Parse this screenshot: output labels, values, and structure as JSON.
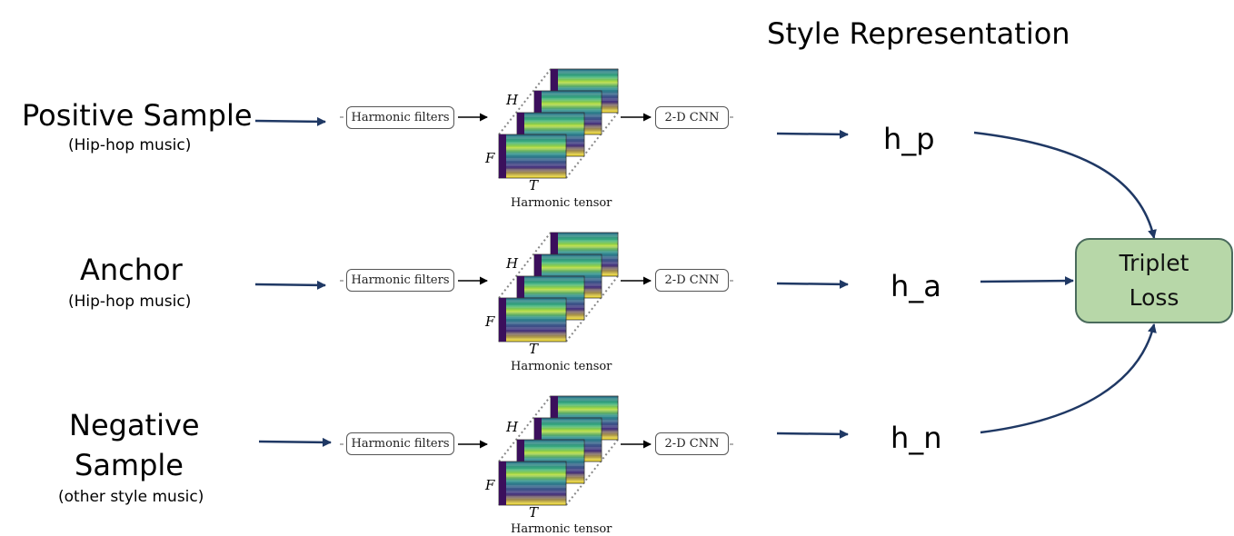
{
  "header": "Style Representation",
  "rows": [
    {
      "id": "positive",
      "title_lines": [
        "Positive Sample"
      ],
      "subtitle": "(Hip-hop music)",
      "filters": "Harmonic filters",
      "cnn": "2-D CNN",
      "axis_h": "H",
      "axis_f": "F",
      "axis_t": "T",
      "tensor_label": "Harmonic tensor",
      "repr": "h_p"
    },
    {
      "id": "anchor",
      "title_lines": [
        "Anchor"
      ],
      "subtitle": "(Hip-hop music)",
      "filters": "Harmonic filters",
      "cnn": "2-D CNN",
      "axis_h": "H",
      "axis_f": "F",
      "axis_t": "T",
      "tensor_label": "Harmonic tensor",
      "repr": "h_a"
    },
    {
      "id": "negative",
      "title_lines": [
        "Negative",
        "Sample"
      ],
      "subtitle": "(other style music)",
      "filters": "Harmonic filters",
      "cnn": "2-D CNN",
      "axis_h": "H",
      "axis_f": "F",
      "axis_t": "T",
      "tensor_label": "Harmonic tensor",
      "repr": "h_n"
    }
  ],
  "loss": {
    "line1": "Triplet",
    "line2": "Loss"
  },
  "colors": {
    "arrow": "#1f3864",
    "black_arrow": "#000000",
    "loss_fill": "#b7d7a8",
    "loss_border": "#4a6b5c",
    "spectro_dark": "#3b0f5c",
    "spectro_mid": "#1f8a8a",
    "spectro_light": "#b7dd3c"
  }
}
